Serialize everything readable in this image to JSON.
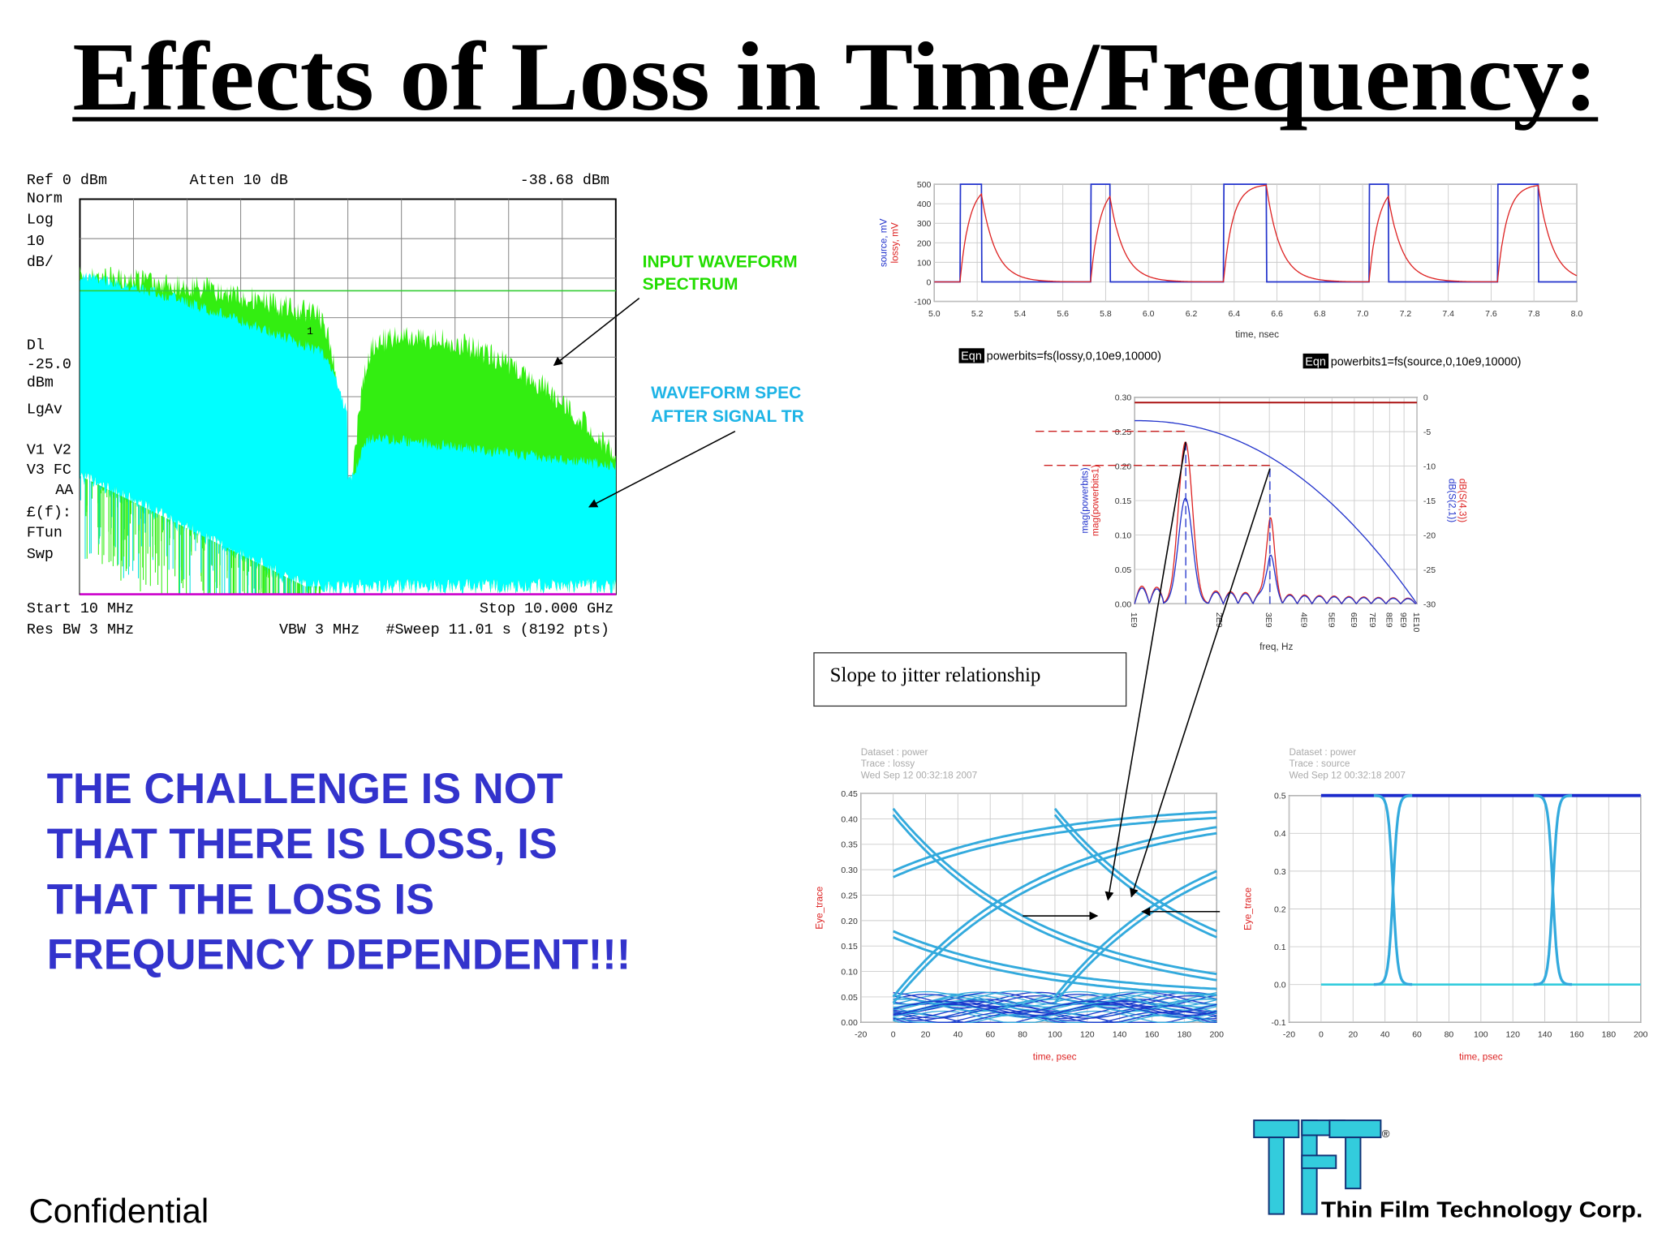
{
  "title": "Effects of Loss in Time/Frequency:",
  "spectrum": {
    "ref": "Ref 0 dBm",
    "atten": "Atten 10 dB",
    "marker_level": "-38.68 dBm",
    "side_labels": [
      "Norm",
      "Log",
      "10",
      "dB/",
      "Dl",
      "-25.0",
      "dBm",
      "LgAv",
      "V1  V2",
      "V3  FC",
      "AA",
      "£(f):",
      "FTun",
      "Swp"
    ],
    "marker": "1",
    "start": "Start 10 MHz",
    "stop": "Stop 10.000 GHz",
    "res_bw": "Res BW 3 MHz",
    "vbw": "VBW 3 MHz",
    "sweep": "#Sweep 11.01 s (8192 pts)"
  },
  "annotations": {
    "input": [
      "INPUT WAVEFORM",
      "SPECTRUM"
    ],
    "output": [
      "WAVEFORM SPEC",
      "AFTER SIGNAL TR"
    ]
  },
  "time_plot": {
    "yticks": [
      "500",
      "400",
      "300",
      "200",
      "100",
      "0",
      "-100"
    ],
    "xticks": [
      "5.0",
      "5.2",
      "5.4",
      "5.6",
      "5.8",
      "6.0",
      "6.2",
      "6.4",
      "6.6",
      "6.8",
      "7.0",
      "7.2",
      "7.4",
      "7.6",
      "7.8",
      "8.0"
    ],
    "y_labels": [
      "source, mV",
      "lossy, mV"
    ],
    "x_label": "time, nsec"
  },
  "equations": [
    {
      "tag": "Eqn",
      "text": "powerbits=fs(lossy,0,10e9,10000)"
    },
    {
      "tag": "Eqn",
      "text": "powerbits1=fs(source,0,10e9,10000)"
    }
  ],
  "freq_plot": {
    "yticks": [
      "0.30",
      "0.25",
      "0.20",
      "0.15",
      "0.10",
      "0.05",
      "0.00"
    ],
    "y2ticks": [
      "0",
      "-5",
      "-10",
      "-15",
      "-20",
      "-25",
      "-30"
    ],
    "xticks": [
      "1E9",
      "2E9",
      "3E9",
      "4E9",
      "5E9",
      "6E9",
      "7E9",
      "8E9",
      "9E9",
      "1E10"
    ],
    "x_label": "freq, Hz",
    "y_labels": [
      "mag(powerbits)",
      "mag(powerbits1)"
    ],
    "y2_labels": [
      "dB(S(4,3))",
      "dB(S(2,1))"
    ]
  },
  "slope_box": "Slope to jitter relationship",
  "eye_plots": [
    {
      "header": [
        "Dataset : power",
        "Trace : lossy",
        "Wed Sep 12 00:32:18 2007"
      ],
      "yticks": [
        "0.45",
        "0.40",
        "0.35",
        "0.30",
        "0.25",
        "0.20",
        "0.15",
        "0.10",
        "0.05",
        "0.00"
      ],
      "xticks": [
        "-20",
        "0",
        "20",
        "40",
        "60",
        "80",
        "100",
        "120",
        "140",
        "160",
        "180",
        "200"
      ],
      "y_label": "Eye_trace",
      "x_label": "time, psec"
    },
    {
      "header": [
        "Dataset : power",
        "Trace : source",
        "Wed Sep 12 00:32:18 2007"
      ],
      "yticks": [
        "0.5",
        "0.4",
        "0.3",
        "0.2",
        "0.1",
        "0.0",
        "-0.1"
      ],
      "xticks": [
        "-20",
        "0",
        "20",
        "40",
        "60",
        "80",
        "100",
        "120",
        "140",
        "160",
        "180",
        "200"
      ],
      "y_label": "Eye_trace",
      "x_label": "time, psec"
    }
  ],
  "message": [
    "THE CHALLENGE IS NOT",
    "THAT THERE IS LOSS, IS",
    "THAT THE LOSS IS",
    "FREQUENCY DEPENDENT!!!"
  ],
  "footer": "Confidential",
  "logo": {
    "mark": "®",
    "name": "Thin Film Technology Corp."
  }
}
